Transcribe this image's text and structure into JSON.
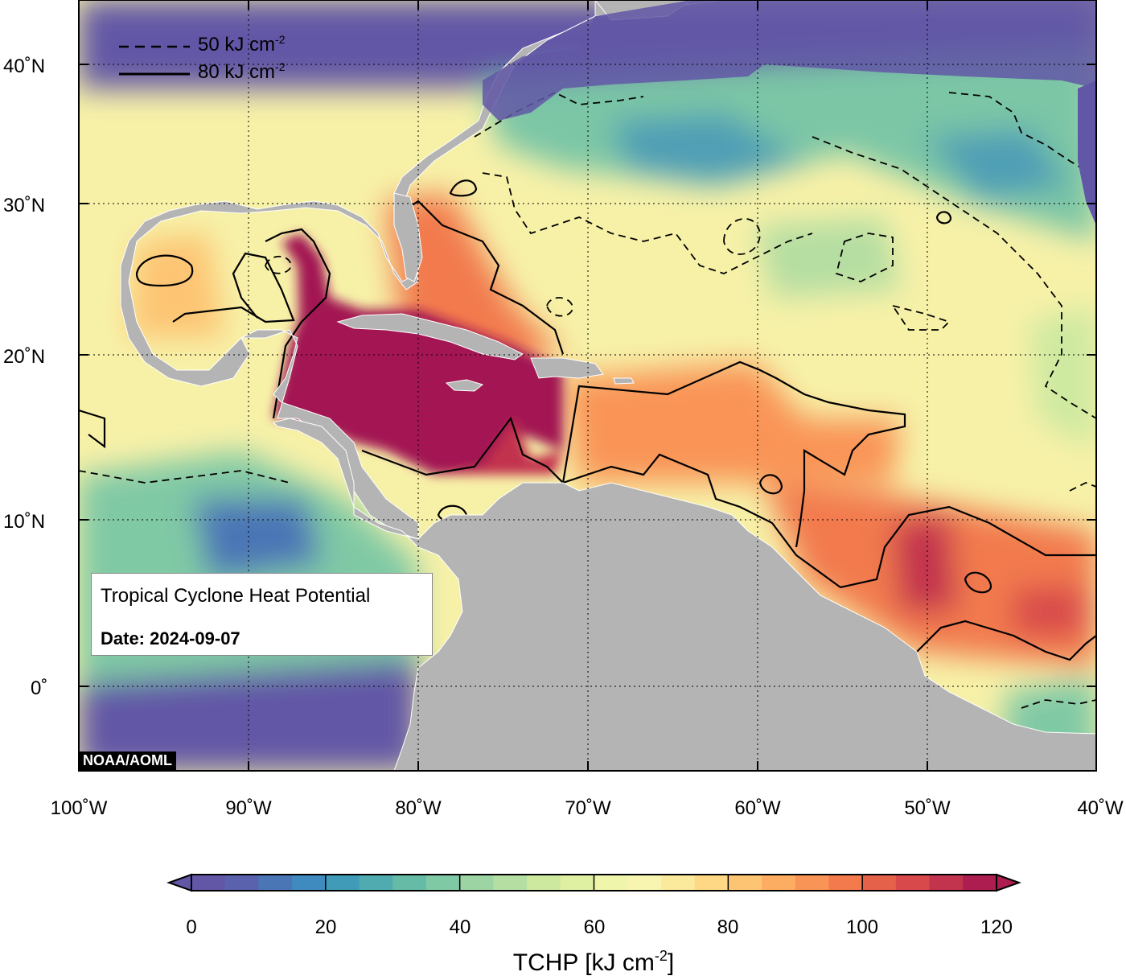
{
  "title_box": {
    "title": "Tropical Cyclone Heat Potential",
    "date_label": "Date: 2024-09-07"
  },
  "credit": "NOAA/AOML",
  "legend": {
    "dashed_label": "50 kJ cm",
    "solid_label": "80 kJ cm",
    "exponent": "-2"
  },
  "axes": {
    "lon_labels": [
      "100˚W",
      "90˚W",
      "80˚W",
      "70˚W",
      "60˚W",
      "50˚W",
      "40˚W"
    ],
    "lat_labels": [
      "40˚N",
      "30˚N",
      "20˚N",
      "10˚N",
      "0˚"
    ]
  },
  "colorbar": {
    "title": "TCHP [kJ cm",
    "title_exponent": "-2",
    "title_suffix": "]",
    "ticks": [
      "0",
      "20",
      "40",
      "60",
      "80",
      "100",
      "120"
    ],
    "min": 0,
    "max": 120,
    "step": 5,
    "colors": [
      "#6257a6",
      "#5a62ad",
      "#4b76b6",
      "#3f8bbf",
      "#3f9bb8",
      "#4fabaf",
      "#66bba7",
      "#80c9a5",
      "#9cd4a4",
      "#b5dea2",
      "#cde9a0",
      "#e0f0a2",
      "#eff5aa",
      "#f7f5b0",
      "#fcea9c",
      "#fed885",
      "#fdc573",
      "#fcad62",
      "#f99457",
      "#f27a4d",
      "#e6614a",
      "#d8494b",
      "#c2334d",
      "#ad1d4f"
    ]
  },
  "colors": {
    "land": "#b4b4b4",
    "deep_ocean": "#6257a6",
    "max_heat": "#a31452"
  }
}
